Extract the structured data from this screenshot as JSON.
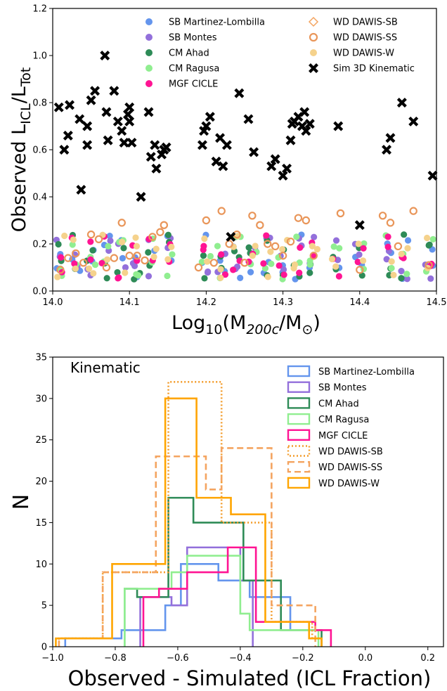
{
  "chart_data": [
    {
      "type": "scatter",
      "ylabel_main": "Observed L",
      "ylabel_sub1": "ICL",
      "ylabel_mid": "/L",
      "ylabel_sub2": "Tot",
      "xlabel_pre": "Log",
      "xlabel_sub": "10",
      "xlabel_post": "(M",
      "xlabel_sub2": "200c",
      "xlabel_mid": "/M",
      "xlabel_sub3": "⊙",
      "xlabel_end": ")",
      "xlim": [
        14.0,
        14.5
      ],
      "ylim": [
        0.0,
        1.2
      ],
      "xticks": [
        "14.0",
        "14.1",
        "14.2",
        "14.3",
        "14.4",
        "14.5"
      ],
      "yticks": [
        "0.0",
        "0.2",
        "0.4",
        "0.6",
        "0.8",
        "1.0",
        "1.2"
      ],
      "xtick_values": [
        14.0,
        14.1,
        14.2,
        14.3,
        14.4,
        14.5
      ],
      "ytick_values": [
        0.0,
        0.2,
        0.4,
        0.6,
        0.8,
        1.0,
        1.2
      ],
      "legend": [
        {
          "name": "SB Martinez-Lombilla",
          "color": "#6495ed",
          "marker": "circle"
        },
        {
          "name": "SB Montes",
          "color": "#9370db",
          "marker": "circle"
        },
        {
          "name": "CM Ahad",
          "color": "#2e8b57",
          "marker": "circle"
        },
        {
          "name": "CM Ragusa",
          "color": "#90ee90",
          "marker": "circle"
        },
        {
          "name": "MGF CICLE",
          "color": "#ff1493",
          "marker": "circle"
        },
        {
          "name": "WD DAWIS-SB",
          "color": "#f4a460",
          "marker": "diamond"
        },
        {
          "name": "WD DAWIS-SS",
          "color": "#e9965a",
          "marker": "ring"
        },
        {
          "name": "WD DAWIS-W",
          "color": "#f5d28c",
          "marker": "circle"
        },
        {
          "name": "Sim 3D Kinematic",
          "color": "#000000",
          "marker": "x"
        }
      ],
      "sim_points": [
        [
          14.008,
          0.78
        ],
        [
          14.022,
          0.79
        ],
        [
          14.015,
          0.6
        ],
        [
          14.02,
          0.66
        ],
        [
          14.035,
          0.73
        ],
        [
          14.045,
          0.7
        ],
        [
          14.05,
          0.81
        ],
        [
          14.055,
          0.85
        ],
        [
          14.045,
          0.62
        ],
        [
          14.037,
          0.43
        ],
        [
          14.068,
          1.0
        ],
        [
          14.07,
          0.76
        ],
        [
          14.072,
          0.64
        ],
        [
          14.08,
          0.85
        ],
        [
          14.085,
          0.72
        ],
        [
          14.09,
          0.68
        ],
        [
          14.093,
          0.63
        ],
        [
          14.098,
          0.75
        ],
        [
          14.1,
          0.72
        ],
        [
          14.103,
          0.63
        ],
        [
          14.1,
          0.78
        ],
        [
          14.115,
          0.4
        ],
        [
          14.125,
          0.76
        ],
        [
          14.128,
          0.57
        ],
        [
          14.133,
          0.62
        ],
        [
          14.135,
          0.52
        ],
        [
          14.142,
          0.58
        ],
        [
          14.145,
          0.6
        ],
        [
          14.148,
          0.61
        ],
        [
          14.195,
          0.62
        ],
        [
          14.197,
          0.68
        ],
        [
          14.2,
          0.7
        ],
        [
          14.205,
          0.74
        ],
        [
          14.213,
          0.55
        ],
        [
          14.218,
          0.65
        ],
        [
          14.222,
          0.53
        ],
        [
          14.227,
          0.62
        ],
        [
          14.232,
          0.23
        ],
        [
          14.243,
          0.84
        ],
        [
          14.255,
          0.73
        ],
        [
          14.262,
          0.59
        ],
        [
          14.285,
          0.53
        ],
        [
          14.29,
          0.56
        ],
        [
          14.3,
          0.49
        ],
        [
          14.305,
          0.52
        ],
        [
          14.31,
          0.64
        ],
        [
          14.312,
          0.71
        ],
        [
          14.315,
          0.72
        ],
        [
          14.32,
          0.74
        ],
        [
          14.325,
          0.7
        ],
        [
          14.328,
          0.76
        ],
        [
          14.33,
          0.68
        ],
        [
          14.335,
          0.71
        ],
        [
          14.372,
          0.7
        ],
        [
          14.4,
          0.28
        ],
        [
          14.435,
          0.6
        ],
        [
          14.44,
          0.65
        ],
        [
          14.455,
          0.8
        ],
        [
          14.47,
          0.72
        ],
        [
          14.495,
          0.49
        ]
      ],
      "ring_points": [
        [
          14.01,
          0.09
        ],
        [
          14.02,
          0.14
        ],
        [
          14.03,
          0.16
        ],
        [
          14.04,
          0.12
        ],
        [
          14.05,
          0.24
        ],
        [
          14.06,
          0.22
        ],
        [
          14.07,
          0.1
        ],
        [
          14.08,
          0.14
        ],
        [
          14.09,
          0.29
        ],
        [
          14.1,
          0.15
        ],
        [
          14.11,
          0.15
        ],
        [
          14.12,
          0.13
        ],
        [
          14.13,
          0.23
        ],
        [
          14.14,
          0.25
        ],
        [
          14.145,
          0.28
        ],
        [
          14.19,
          0.1
        ],
        [
          14.2,
          0.3
        ],
        [
          14.21,
          0.12
        ],
        [
          14.22,
          0.34
        ],
        [
          14.23,
          0.2
        ],
        [
          14.24,
          0.24
        ],
        [
          14.25,
          0.12
        ],
        [
          14.26,
          0.32
        ],
        [
          14.27,
          0.28
        ],
        [
          14.28,
          0.2
        ],
        [
          14.29,
          0.19
        ],
        [
          14.3,
          0.15
        ],
        [
          14.31,
          0.21
        ],
        [
          14.32,
          0.31
        ],
        [
          14.33,
          0.3
        ],
        [
          14.34,
          0.15
        ],
        [
          14.375,
          0.33
        ],
        [
          14.4,
          0.09
        ],
        [
          14.43,
          0.32
        ],
        [
          14.44,
          0.29
        ],
        [
          14.45,
          0.19
        ],
        [
          14.47,
          0.34
        ],
        [
          14.49,
          0.11
        ]
      ],
      "ring_point_color": "#e9965a",
      "cluster_point_colors": [
        "#6495ed",
        "#9370db",
        "#2e8b57",
        "#90ee90",
        "#ff1493",
        "#f5d28c"
      ],
      "cluster_centers": [
        14.01,
        14.03,
        14.05,
        14.07,
        14.09,
        14.11,
        14.13,
        14.15,
        14.2,
        14.22,
        14.24,
        14.26,
        14.28,
        14.3,
        14.32,
        14.34,
        14.37,
        14.4,
        14.44,
        14.46,
        14.49
      ]
    },
    {
      "type": "histogram-step",
      "annotation": "Kinematic",
      "xlabel": "Observed - Simulated (ICL Fraction)",
      "ylabel": "N",
      "xlim": [
        -1.0,
        0.25
      ],
      "ylim": [
        0,
        35
      ],
      "xticks": [
        "−1.0",
        "−0.8",
        "−0.6",
        "−0.4",
        "−0.2",
        "0.0",
        "0.2"
      ],
      "yticks": [
        "0",
        "5",
        "10",
        "15",
        "20",
        "25",
        "30",
        "35"
      ],
      "xtick_values": [
        -1.0,
        -0.8,
        -0.6,
        -0.4,
        -0.2,
        0.0,
        0.2
      ],
      "ytick_values": [
        0,
        5,
        10,
        15,
        20,
        25,
        30,
        35
      ],
      "series": [
        {
          "name": "SB Martinez-Lombilla",
          "color": "#6495ed",
          "dash": "",
          "edges": [
            -0.96,
            -0.78,
            -0.64,
            -0.59,
            -0.47,
            -0.37,
            -0.24
          ],
          "values": [
            1,
            2,
            5,
            10,
            8,
            6,
            2
          ]
        },
        {
          "name": "SB Montes",
          "color": "#9370db",
          "dash": "",
          "edges": [
            -0.72,
            -0.62,
            -0.57,
            -0.48,
            -0.4,
            -0.36
          ],
          "values": [
            6,
            5,
            12,
            12,
            8
          ]
        },
        {
          "name": "CM Ahad",
          "color": "#2e8b57",
          "dash": "",
          "edges": [
            -0.77,
            -0.73,
            -0.63,
            -0.55,
            -0.45,
            -0.39,
            -0.35,
            -0.27,
            -0.16,
            -0.14
          ],
          "values": [
            7,
            6,
            18,
            15,
            15,
            8,
            8,
            2,
            2
          ]
        },
        {
          "name": "CM Ragusa",
          "color": "#90ee90",
          "dash": "",
          "edges": [
            -0.77,
            -0.7,
            -0.62,
            -0.57,
            -0.47,
            -0.4,
            -0.37,
            -0.17,
            -0.15
          ],
          "values": [
            7,
            7,
            9,
            11,
            11,
            4,
            2,
            2
          ]
        },
        {
          "name": "MGF CICLE",
          "color": "#ff1493",
          "dash": "",
          "edges": [
            -0.71,
            -0.66,
            -0.57,
            -0.44,
            -0.35,
            -0.3,
            -0.16,
            -0.11
          ],
          "values": [
            6,
            7,
            9,
            12,
            3,
            3,
            2
          ]
        },
        {
          "name": "WD DAWIS-SB",
          "color": "#f39c2b",
          "dash": "2,3",
          "edges": [
            -0.98,
            -0.84,
            -0.63,
            -0.46,
            -0.4,
            -0.3,
            -0.17,
            -0.14
          ],
          "values": [
            1,
            9,
            32,
            15,
            15,
            3,
            1
          ]
        },
        {
          "name": "WD DAWIS-SS",
          "color": "#f4a460",
          "dash": "9,5",
          "edges": [
            -0.98,
            -0.84,
            -0.67,
            -0.51,
            -0.46,
            -0.3,
            -0.16
          ],
          "values": [
            1,
            9,
            23,
            19,
            24,
            5
          ]
        },
        {
          "name": "WD DAWIS-W",
          "color": "#ffa500",
          "dash": "",
          "edges": [
            -0.99,
            -0.81,
            -0.64,
            -0.54,
            -0.43,
            -0.32,
            -0.26,
            -0.18,
            -0.14
          ],
          "values": [
            1,
            10,
            30,
            18,
            16,
            3,
            3,
            1
          ]
        }
      ]
    }
  ]
}
